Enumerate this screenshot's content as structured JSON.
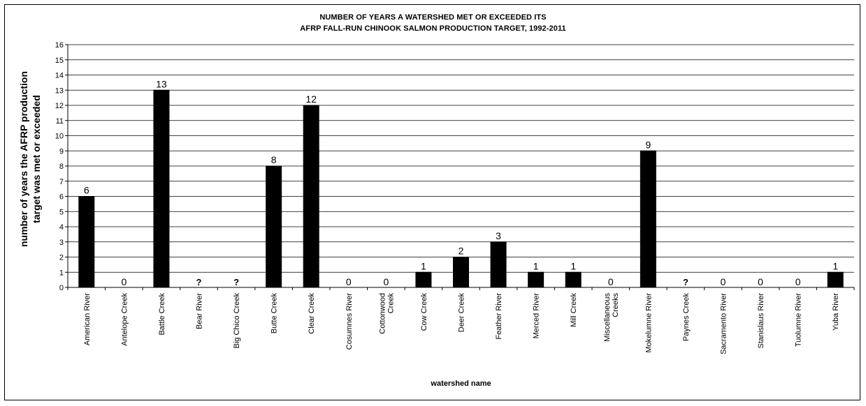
{
  "chart_data": {
    "type": "bar",
    "title_line1": "NUMBER OF YEARS A WATERSHED MET OR EXCEEDED ITS",
    "title_line2": "AFRP FALL-RUN CHINOOK SALMON PRODUCTION TARGET, 1992-2011",
    "xlabel": "watershed name",
    "ylabel_line1": "number of years the AFRP production",
    "ylabel_line2": "target was met or exceeded",
    "ylim": [
      0,
      16
    ],
    "yticks": [
      0,
      1,
      2,
      3,
      4,
      5,
      6,
      7,
      8,
      9,
      10,
      11,
      12,
      13,
      14,
      15,
      16
    ],
    "grid": true,
    "bar_color": "#000000",
    "categories": [
      [
        "American River"
      ],
      [
        "Antelope Creek"
      ],
      [
        "Battle Creek"
      ],
      [
        "Bear River"
      ],
      [
        "Big Chico Creek"
      ],
      [
        "Butte Creek"
      ],
      [
        "Clear Creek"
      ],
      [
        "Cosumnes River"
      ],
      [
        "Cottonwood",
        "Creek"
      ],
      [
        "Cow Creek"
      ],
      [
        "Deer Creek"
      ],
      [
        "Feather River"
      ],
      [
        "Merced River"
      ],
      [
        "Mill Creek"
      ],
      [
        "Miscellaneous",
        "Creeks"
      ],
      [
        "Mokelumne River"
      ],
      [
        "Paynes Creek"
      ],
      [
        "Sacramento River"
      ],
      [
        "Stanislaus River"
      ],
      [
        "Tuolumne River"
      ],
      [
        "Yuba River"
      ]
    ],
    "values": [
      6,
      0,
      13,
      null,
      null,
      8,
      12,
      0,
      0,
      1,
      2,
      3,
      1,
      1,
      0,
      9,
      null,
      0,
      0,
      0,
      1
    ],
    "data_labels": [
      "6",
      "0",
      "13",
      "?",
      "?",
      "8",
      "12",
      "0",
      "0",
      "1",
      "2",
      "3",
      "1",
      "1",
      "0",
      "9",
      "?",
      "0",
      "0",
      "0",
      "1"
    ]
  }
}
